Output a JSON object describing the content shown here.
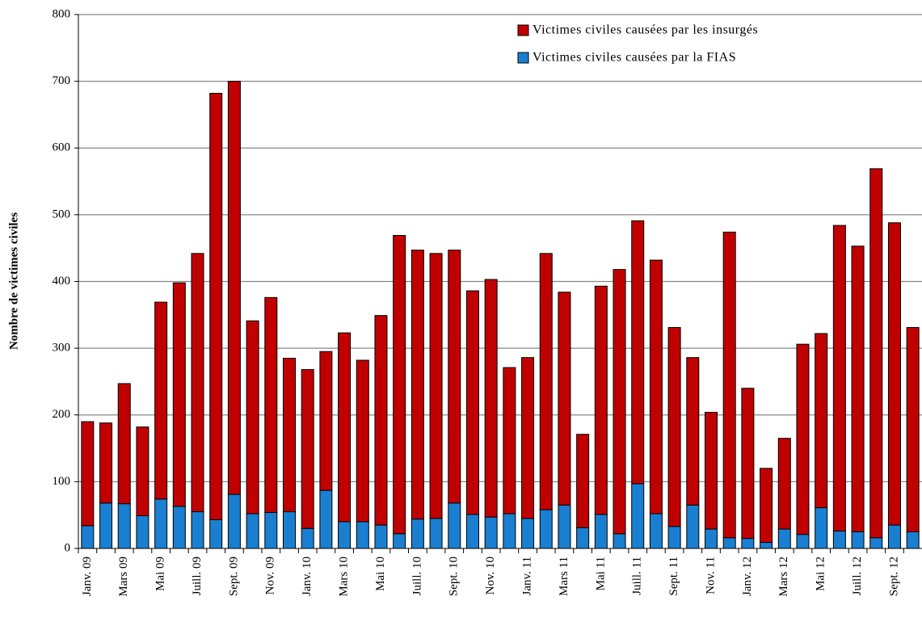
{
  "chart_data": {
    "type": "stacked_bar",
    "y_label": "Nombre de victimes civiles",
    "categories": [
      "Janv. 09",
      null,
      "Mars 09",
      null,
      "Mai 09",
      null,
      "Juill. 09",
      null,
      "Sept. 09",
      null,
      "Nov. 09",
      null,
      "Janv. 10",
      null,
      "Mars 10",
      null,
      "Mai 10",
      null,
      "Juill. 10",
      null,
      "Sept. 10",
      null,
      "Nov. 10",
      null,
      "Janv. 11",
      null,
      "Mars 11",
      null,
      "Mai 11",
      null,
      "Juill. 11",
      null,
      "Sept. 11",
      null,
      "Nov. 11",
      null,
      "Janv. 12",
      null,
      "Mars 12",
      null,
      "Mai 12",
      null,
      "Juill. 12",
      null,
      "Sept. 12",
      null
    ],
    "series": [
      {
        "name": "Victimes civiles causées par les insurgés",
        "color": "#c00000",
        "values": [
          156,
          120,
          180,
          133,
          295,
          335,
          387,
          639,
          619,
          289,
          322,
          230,
          238,
          208,
          283,
          242,
          314,
          447,
          403,
          397,
          379,
          335,
          356,
          219,
          241,
          384,
          319,
          140,
          342,
          396,
          394,
          380,
          298,
          221,
          175,
          458,
          225,
          111,
          136,
          285,
          261,
          458,
          428,
          553,
          453,
          306
        ]
      },
      {
        "name": "Victimes civiles causées par la FIAS",
        "color": "#1a7fd0",
        "values": [
          34,
          68,
          67,
          49,
          74,
          63,
          55,
          43,
          81,
          52,
          54,
          55,
          30,
          87,
          40,
          40,
          35,
          22,
          44,
          45,
          68,
          51,
          47,
          52,
          45,
          58,
          65,
          31,
          51,
          22,
          97,
          52,
          33,
          65,
          29,
          16,
          15,
          9,
          29,
          21,
          61,
          26,
          25,
          16,
          35,
          25
        ]
      }
    ],
    "ylim": [
      0,
      800
    ],
    "yticks": [
      0,
      100,
      200,
      300,
      400,
      500,
      600,
      700,
      800
    ],
    "grid": true
  }
}
